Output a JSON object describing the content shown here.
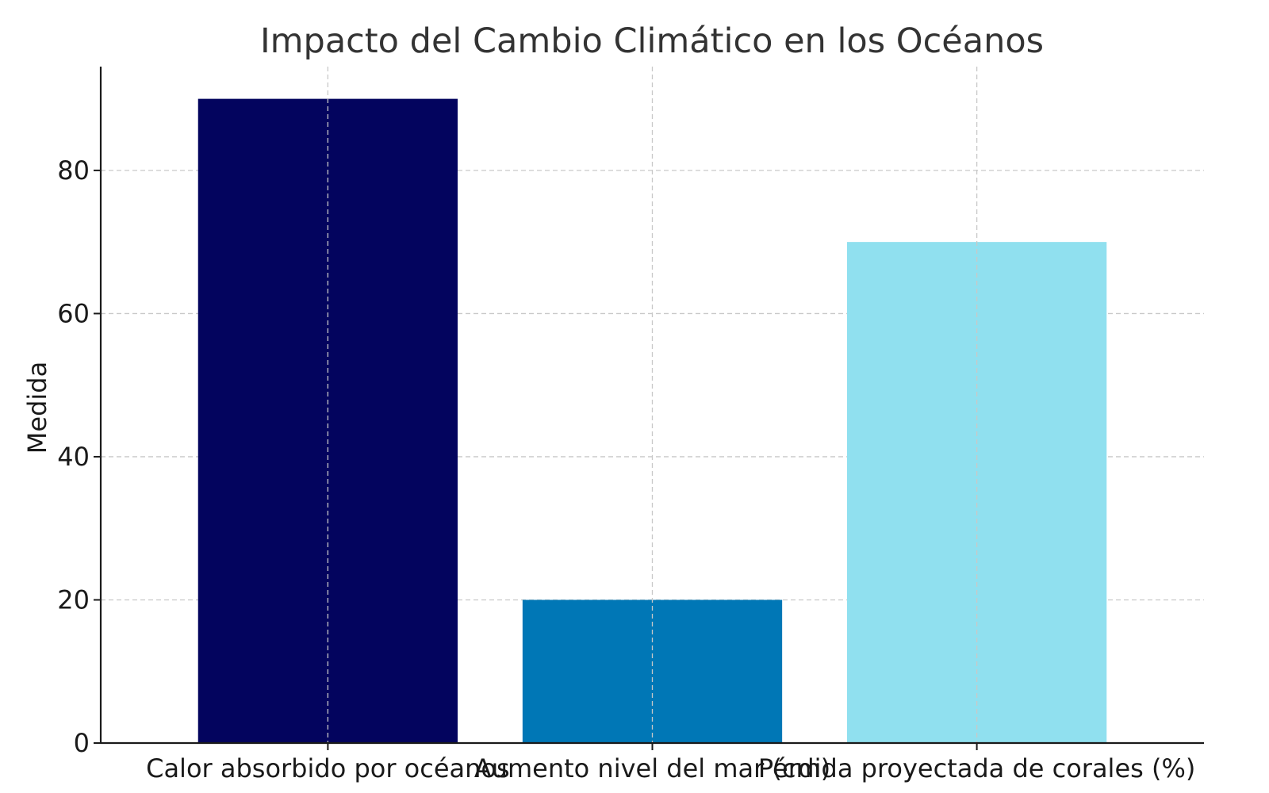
{
  "chart_data": {
    "type": "bar",
    "title": "Impacto del Cambio Climático en los Océanos",
    "xlabel": "",
    "ylabel": "Medida",
    "categories": [
      "Calor absorbido por océanos",
      "Aumento nivel del mar (cm)",
      "Pérdida proyectada de corales (%)"
    ],
    "values": [
      90,
      20,
      70
    ],
    "colors": [
      "#03045e",
      "#0077b6",
      "#90e0ef"
    ],
    "ylim": [
      0,
      94.5
    ],
    "yticks": [
      0,
      20,
      40,
      60,
      80
    ],
    "grid": true,
    "grid_color": "#c8c8c8",
    "axis_color": "#1a1a1a",
    "title_color": "#333333"
  }
}
